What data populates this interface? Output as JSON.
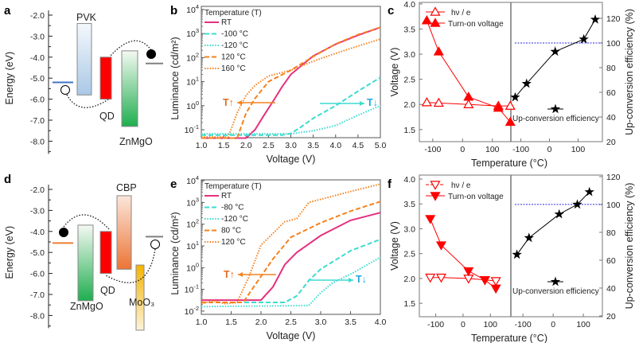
{
  "chart_data": [
    {
      "panel": "a",
      "type": "diagram",
      "ylabel": "Energy (eV)",
      "yticks": [
        "-2.0",
        "-3.0",
        "-4.0",
        "-5.0",
        "-6.0",
        "-7.0",
        "-8.0"
      ],
      "ytick_values": [
        -2,
        -3,
        -4,
        -5,
        -6,
        -7,
        -8
      ],
      "bands": [
        {
          "name": "PVK",
          "top": -2.4,
          "bottom": -5.8,
          "color_top": "#f4f8fc",
          "color_bottom": "#a9c8e6"
        },
        {
          "name": "QD",
          "top": -4.0,
          "bottom": -6.0,
          "color_top": "#ff0000",
          "color_bottom": "#ff0000"
        },
        {
          "name": "ZnMgO",
          "top": -3.7,
          "bottom": -7.3,
          "color_top": "#f4f9f2",
          "color_bottom": "#1fae4f"
        }
      ],
      "electrode_levels": [
        {
          "side": "left",
          "energy": -5.2,
          "color": "#4472c4"
        },
        {
          "side": "right",
          "energy": -4.3,
          "color": "#808080"
        }
      ]
    },
    {
      "panel": "b",
      "type": "line",
      "xlabel": "Voltage (V)",
      "ylabel": "Luminance (cd/m²)",
      "xlim": [
        1.0,
        5.0
      ],
      "xticks": [
        "1.0",
        "1.5",
        "2.0",
        "2.5",
        "3.0",
        "3.5",
        "4.0",
        "4.5",
        "5.0"
      ],
      "yscale": "log",
      "ylim_log10": [
        -1.33,
        4.13
      ],
      "ytick_exponents": [
        "-1",
        "0",
        "1",
        "2",
        "3",
        "4"
      ],
      "legend_title": "Temperature (T)",
      "legend_position": "top-left",
      "series": [
        {
          "name": "RT",
          "color": "#e5307e",
          "style": "solid",
          "x": [
            1.0,
            2.0,
            2.2,
            2.4,
            2.6,
            2.8,
            3.0,
            3.5,
            4.0,
            4.5,
            5.0
          ],
          "y": [
            0.045,
            0.045,
            0.1,
            0.4,
            1.5,
            6,
            20,
            117,
            360,
            850,
            1800
          ]
        },
        {
          "name": "-100 °C",
          "color": "#3ddbd0",
          "style": "dashed",
          "x": [
            1.0,
            2.8,
            3.0,
            3.2,
            3.5,
            4.0,
            4.5,
            5.0
          ],
          "y": [
            0.06,
            0.06,
            0.07,
            0.12,
            0.3,
            1.0,
            4,
            15
          ]
        },
        {
          "name": "-120 °C",
          "color": "#3ddbd0",
          "style": "dotted",
          "x": [
            1.0,
            3.0,
            3.5,
            4.0,
            4.5,
            5.0
          ],
          "y": [
            0.068,
            0.068,
            0.09,
            0.15,
            0.4,
            1.0
          ]
        },
        {
          "name": "120 °C",
          "color": "#f5821f",
          "style": "dashed",
          "x": [
            1.0,
            1.8,
            2.0,
            2.2,
            2.5,
            3.0,
            3.5,
            4.0,
            4.5,
            5.0
          ],
          "y": [
            0.045,
            0.045,
            0.5,
            2,
            10,
            30,
            110,
            370,
            900,
            1800
          ]
        },
        {
          "name": "160 °C",
          "color": "#f5821f",
          "style": "dotted",
          "x": [
            1.0,
            1.6,
            1.8,
            2.0,
            2.2,
            2.5,
            3.0,
            3.5,
            4.0,
            4.5,
            5.0
          ],
          "y": [
            0.05,
            0.05,
            0.5,
            2.7,
            7,
            17,
            30,
            70,
            150,
            300,
            590
          ]
        }
      ],
      "annotations": [
        "T↑",
        "T↓"
      ]
    },
    {
      "panel": "c",
      "type": "line",
      "xlabel": "Temperature (°C)",
      "ylabel": "Voltage (V)",
      "y2label": "Up-conversion efficiency (%)",
      "xticks_left": [
        "-100",
        "0",
        "100"
      ],
      "xticks_right": [
        "-100",
        "0",
        "100"
      ],
      "xlim_left": [
        -145,
        162
      ],
      "xlim_right": [
        -135,
        185
      ],
      "ylim": [
        1.26,
        4.03
      ],
      "yticks": [
        "1.5",
        "2.0",
        "2.5",
        "3.0",
        "3.5",
        "4.0"
      ],
      "y2lim": [
        20,
        132.9
      ],
      "y2ticks": [
        "20",
        "40",
        "60",
        "80",
        "100",
        "120"
      ],
      "reference_line_efficiency": 100,
      "reference_color": "#2a2ae6",
      "series": [
        {
          "name": "hν / e",
          "marker": "open-triangle-up",
          "color": "#ff0000",
          "axis": "left",
          "x": [
            -120,
            -80,
            20,
            120,
            160
          ],
          "y": [
            2.04,
            2.03,
            2.0,
            1.97,
            1.97
          ]
        },
        {
          "name": "Turn-on voltage",
          "marker": "filled-triangle-up",
          "color": "#ff0000",
          "axis": "left",
          "x": [
            -120,
            -80,
            20,
            120,
            160
          ],
          "y": [
            3.67,
            3.05,
            2.15,
            1.93,
            1.65
          ]
        },
        {
          "name": "Up-conversion efficiency",
          "marker": "star",
          "color": "#000000",
          "axis": "right",
          "x": [
            -120,
            -80,
            20,
            120,
            160
          ],
          "y": [
            56,
            67,
            93,
            103,
            119
          ]
        }
      ]
    },
    {
      "panel": "d",
      "type": "diagram",
      "ylabel": "Energy (eV)",
      "yticks": [
        "-2.0",
        "-3.0",
        "-4.0",
        "-5.0",
        "-6.0",
        "-7.0",
        "-8.0"
      ],
      "ytick_values": [
        -2,
        -3,
        -4,
        -5,
        -6,
        -7,
        -8
      ],
      "bands": [
        {
          "name": "ZnMgO",
          "top": -3.7,
          "bottom": -7.3,
          "color_top": "#f4f9f2",
          "color_bottom": "#1fae4f"
        },
        {
          "name": "QD",
          "top": -4.0,
          "bottom": -6.0,
          "color_top": "#ff0000",
          "color_bottom": "#ff0000"
        },
        {
          "name": "CBP",
          "top": -2.3,
          "bottom": -5.8,
          "color_top": "#fbe6da",
          "color_bottom": "#ec7436"
        },
        {
          "name": "MoO₃",
          "top": -5.6,
          "bottom": -8.7,
          "color_top": "#f5b400",
          "color_bottom": "#fdf3da"
        }
      ],
      "electrode_levels": [
        {
          "side": "left",
          "energy": -4.55,
          "color": "#ed7d31"
        },
        {
          "side": "right",
          "energy": -4.25,
          "color": "#808080"
        }
      ]
    },
    {
      "panel": "e",
      "type": "line",
      "xlabel": "Voltage (V)",
      "ylabel": "Luminance (cd/m²)",
      "xlim": [
        1.0,
        4.0
      ],
      "xticks": [
        "1.0",
        "1.5",
        "2.0",
        "2.5",
        "3.0",
        "3.5",
        "4.0"
      ],
      "yscale": "log",
      "ylim_log10": [
        -2.15,
        4.04
      ],
      "ytick_exponents": [
        "-2",
        "-1",
        "0",
        "1",
        "2",
        "3",
        "4"
      ],
      "legend_title": "Temperature (T)",
      "legend_position": "top-left",
      "series": [
        {
          "name": "RT",
          "color": "#e5307e",
          "style": "solid",
          "x": [
            1.0,
            2.0,
            2.2,
            2.4,
            2.6,
            3.0,
            3.5,
            4.0
          ],
          "y": [
            0.032,
            0.032,
            0.13,
            1.4,
            5,
            30,
            150,
            340
          ]
        },
        {
          "name": "-80 °C",
          "color": "#3ddbd0",
          "style": "dashed",
          "x": [
            1.0,
            2.4,
            2.6,
            2.8,
            3.0,
            3.5,
            4.0
          ],
          "y": [
            0.025,
            0.025,
            0.05,
            0.25,
            0.85,
            6,
            20
          ]
        },
        {
          "name": "-120 °C",
          "color": "#3ddbd0",
          "style": "dotted",
          "x": [
            1.0,
            2.8,
            3.0,
            3.2,
            3.5,
            4.0
          ],
          "y": [
            0.016,
            0.018,
            0.07,
            0.2,
            0.5,
            3
          ]
        },
        {
          "name": "80 °C",
          "color": "#f5821f",
          "style": "dashed",
          "x": [
            1.0,
            1.7,
            2.0,
            2.2,
            2.5,
            3.0,
            3.5,
            4.0
          ],
          "y": [
            0.025,
            0.025,
            0.4,
            2.5,
            25,
            115,
            400,
            1100
          ]
        },
        {
          "name": "120 °C",
          "color": "#f5821f",
          "style": "dotted",
          "x": [
            1.0,
            1.2,
            1.4,
            1.6,
            1.8,
            2.0,
            2.4,
            2.6,
            2.8,
            3.5,
            4.0
          ],
          "y": [
            0.022,
            0.03,
            0.022,
            0.025,
            0.4,
            11,
            130,
            180,
            1000,
            3200,
            7000
          ]
        }
      ],
      "annotations": [
        "T↑",
        "T↓"
      ]
    },
    {
      "panel": "f",
      "type": "line",
      "xlabel": "Temperature (°C)",
      "ylabel": "Voltage (V)",
      "y2label": "Up-conversion efficiency (%)",
      "xticks_left": [
        "-100",
        "0",
        "100"
      ],
      "xticks_right": [
        "-100",
        "0",
        "100"
      ],
      "xlim_left": [
        -160,
        175
      ],
      "xlim_right": [
        -140,
        163
      ],
      "ylim": [
        1.23,
        4.08
      ],
      "yticks": [
        "1.5",
        "2.0",
        "2.5",
        "3.0",
        "3.5",
        "4.0"
      ],
      "y2lim": [
        19.4,
        121.1
      ],
      "y2ticks": [
        "20",
        "40",
        "60",
        "80",
        "100",
        "120"
      ],
      "reference_line_efficiency": 100,
      "reference_color": "#2a2ae6",
      "series": [
        {
          "name": "hν / e",
          "marker": "open-triangle-down",
          "color": "#ff0000",
          "axis": "left",
          "x": [
            -120,
            -80,
            20,
            80,
            120
          ],
          "y": [
            2.02,
            2.02,
            2.0,
            1.97,
            1.95
          ]
        },
        {
          "name": "Turn-on voltage",
          "marker": "filled-triangle-down",
          "color": "#ff0000",
          "axis": "left",
          "x": [
            -120,
            -80,
            20,
            80,
            120
          ],
          "y": [
            3.2,
            2.67,
            2.15,
            1.97,
            1.8
          ]
        },
        {
          "name": "Up-conversion efficiency",
          "marker": "star",
          "color": "#000000",
          "axis": "right",
          "x": [
            -120,
            -80,
            20,
            80,
            120
          ],
          "y": [
            64,
            76,
            93,
            100,
            109
          ]
        }
      ]
    }
  ]
}
